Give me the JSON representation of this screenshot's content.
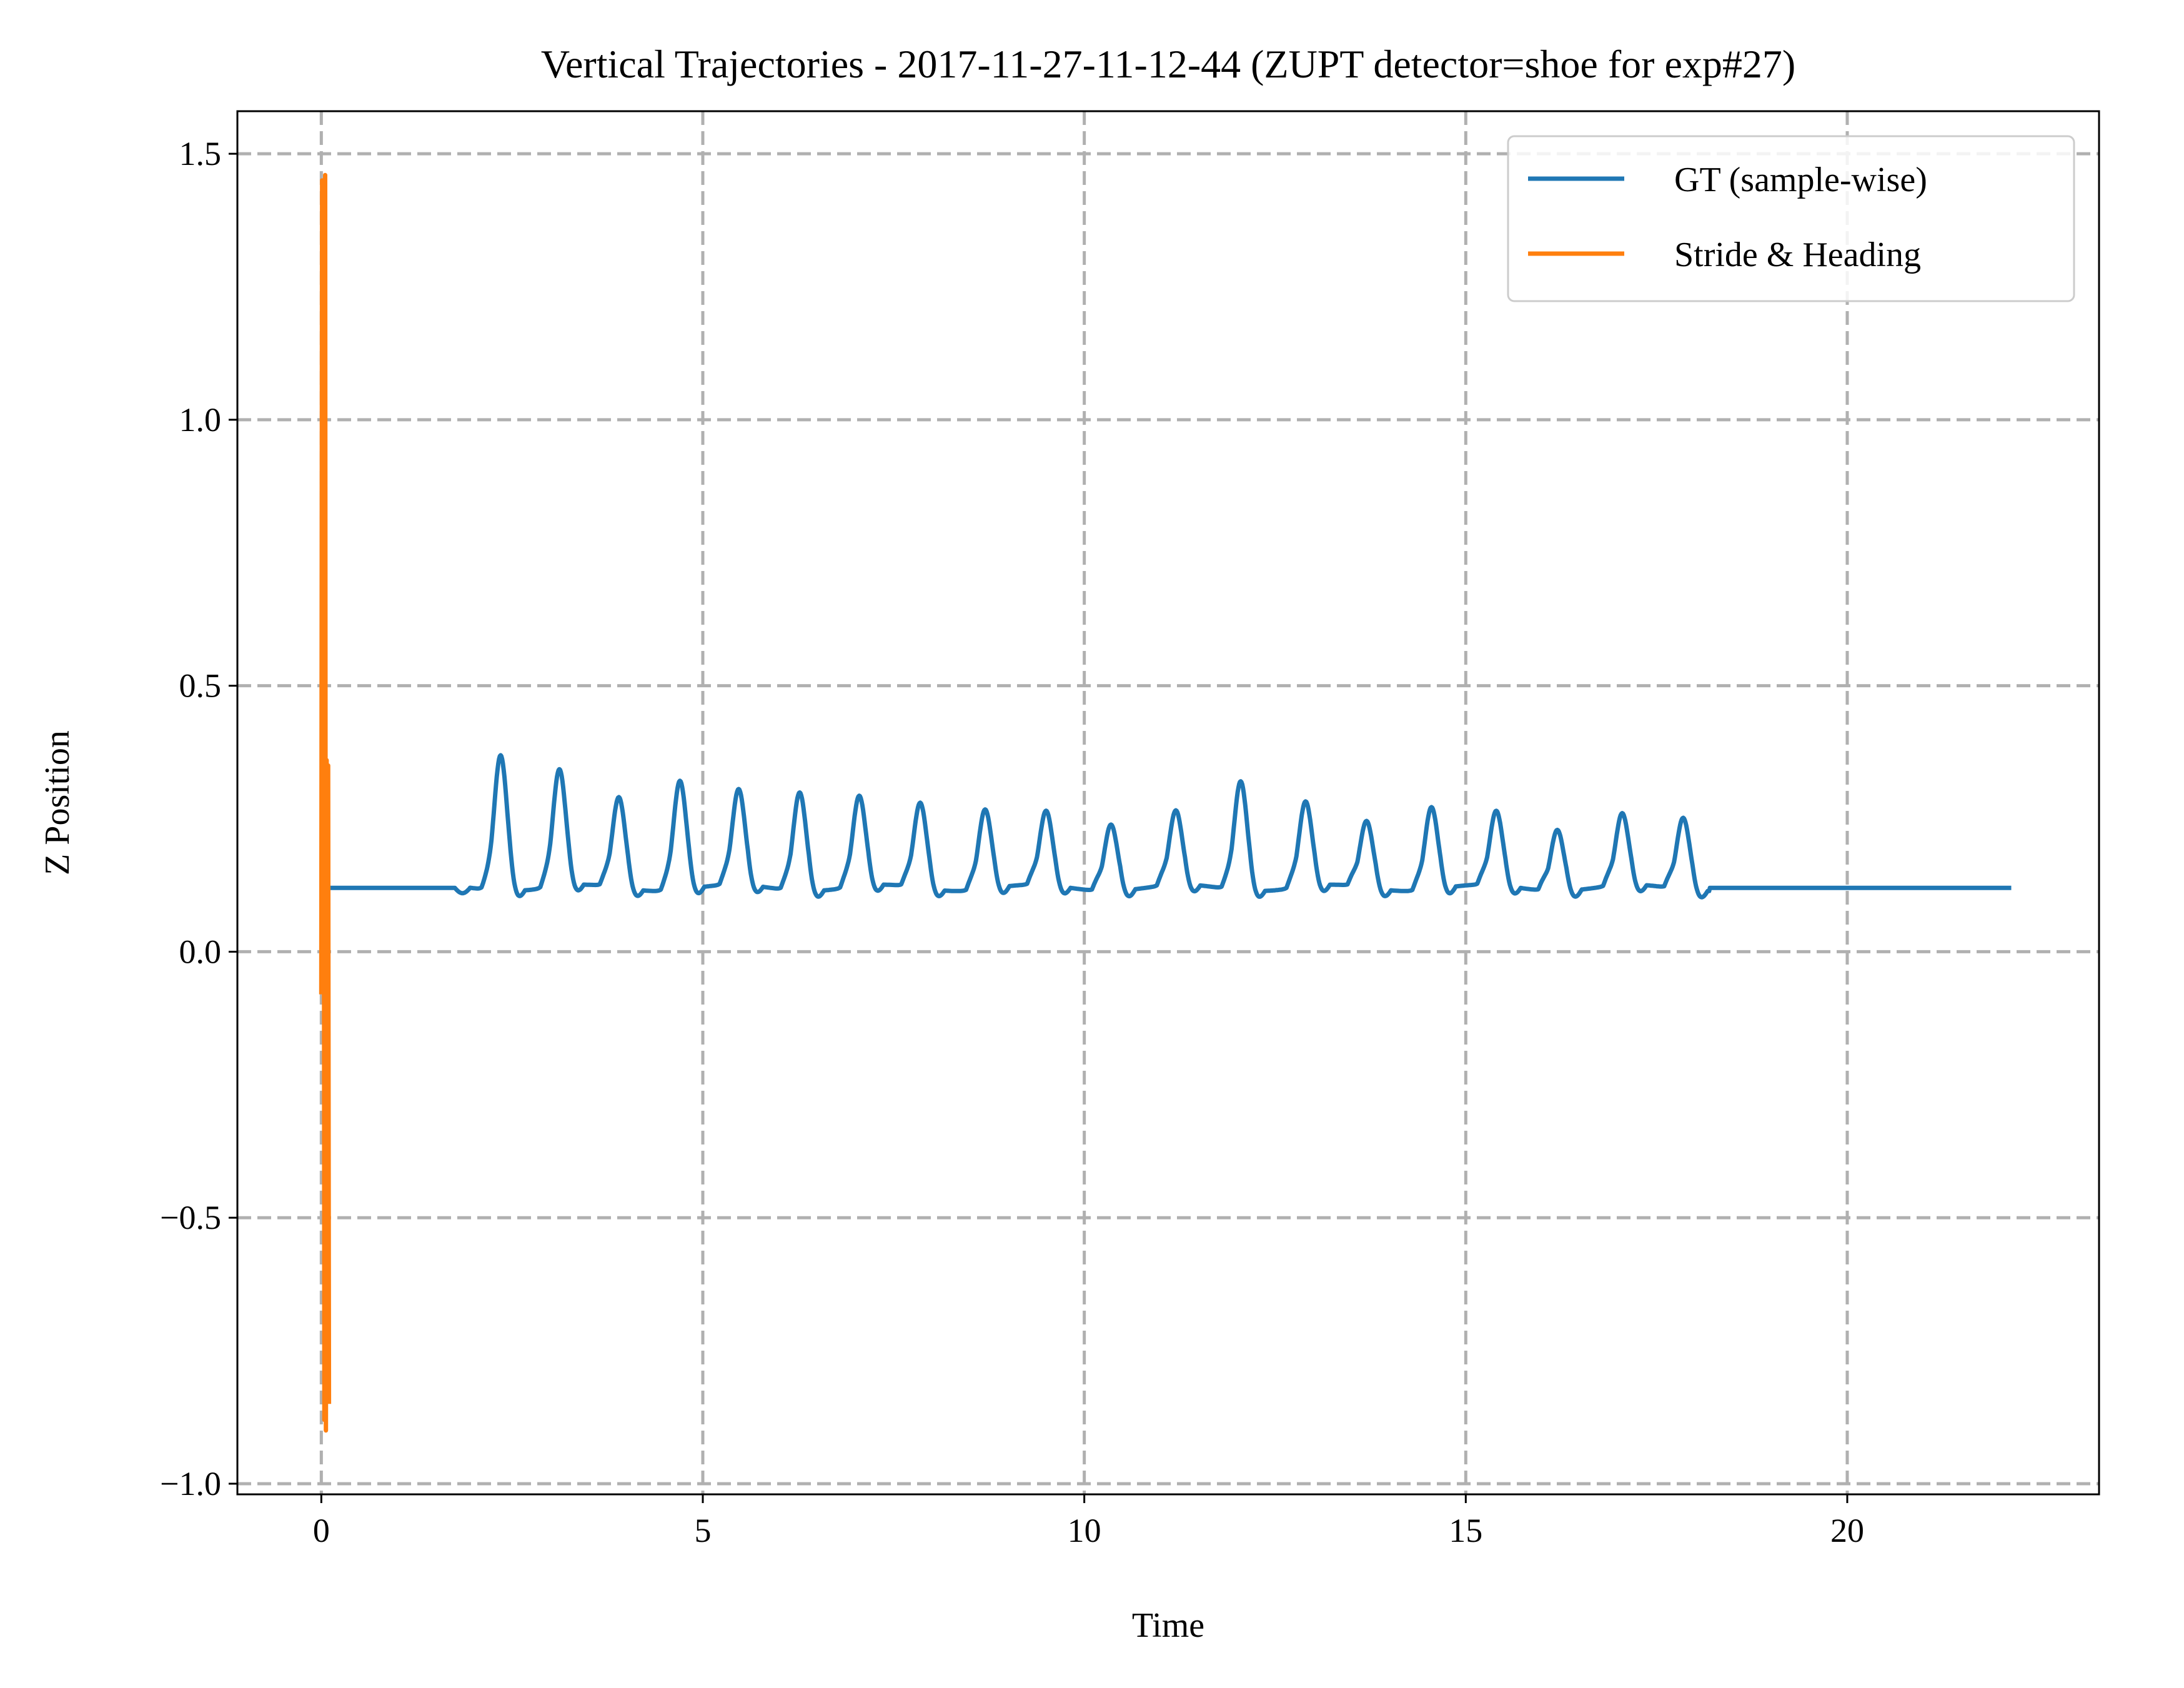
{
  "chart_data": {
    "type": "line",
    "title": "Vertical Trajectories - 2017-11-27-11-12-44 (ZUPT detector=shoe for exp#27)",
    "xlabel": "Time",
    "ylabel": "Z Position",
    "xlim": [
      -1.1,
      23.3
    ],
    "ylim": [
      -1.02,
      1.58
    ],
    "x_ticks": [
      0,
      5,
      10,
      15,
      20
    ],
    "x_tick_labels": [
      "0",
      "5",
      "10",
      "15",
      "20"
    ],
    "y_ticks": [
      -1.0,
      -0.5,
      0.0,
      0.5,
      1.0,
      1.5
    ],
    "y_tick_labels": [
      "−1.0",
      "−0.5",
      "0.0",
      "0.5",
      "1.0",
      "1.5"
    ],
    "grid": true,
    "legend_position": "top-right",
    "series": [
      {
        "name": "GT (sample-wise)",
        "color": "#1f77b4",
        "baseline": 0.12,
        "flat_start": [
          0.05,
          1.95
        ],
        "flat_end": [
          18.2,
          22.15
        ],
        "step_peaks": [
          [
            2.35,
            0.375
          ],
          [
            3.12,
            0.34
          ],
          [
            3.9,
            0.29
          ],
          [
            4.7,
            0.325
          ],
          [
            5.47,
            0.3
          ],
          [
            6.27,
            0.305
          ],
          [
            7.05,
            0.29
          ],
          [
            7.85,
            0.28
          ],
          [
            8.7,
            0.27
          ],
          [
            9.5,
            0.26
          ],
          [
            10.35,
            0.245
          ],
          [
            11.2,
            0.26
          ],
          [
            12.05,
            0.325
          ],
          [
            12.9,
            0.28
          ],
          [
            13.7,
            0.245
          ],
          [
            14.55,
            0.275
          ],
          [
            15.4,
            0.26
          ],
          [
            16.2,
            0.235
          ],
          [
            17.05,
            0.255
          ],
          [
            17.85,
            0.255
          ]
        ]
      },
      {
        "name": "Stride & Heading",
        "color": "#ff7f0e",
        "x": [
          0.0,
          0.01,
          0.02,
          0.03,
          0.04,
          0.05,
          0.06,
          0.07,
          0.08,
          0.09,
          0.1
        ],
        "y": [
          -0.08,
          1.45,
          -0.05,
          1.2,
          -0.88,
          1.46,
          -0.9,
          0.36,
          -0.5,
          0.35,
          -0.85
        ]
      }
    ]
  }
}
